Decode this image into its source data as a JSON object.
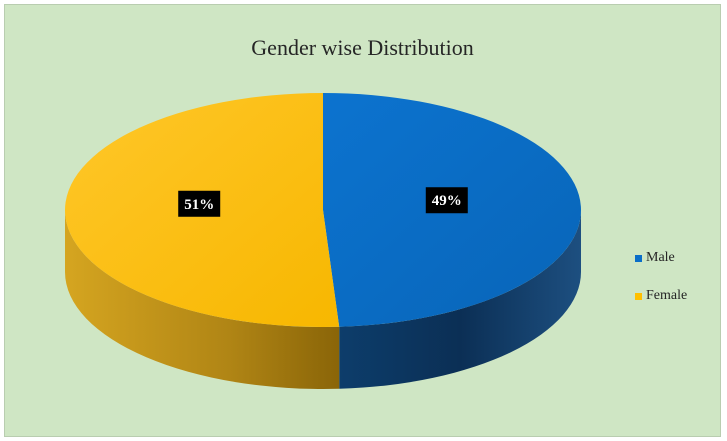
{
  "chart_data": {
    "type": "pie",
    "title": "Gender wise Distribution",
    "series": [
      {
        "name": "Male",
        "value": 49,
        "label": "49%",
        "color": "#0a6ec8",
        "side_color": "#0b3a66"
      },
      {
        "name": "Female",
        "value": 51,
        "label": "51%",
        "color": "#ffc000",
        "side_color": "#a87d10"
      }
    ],
    "legend_position": "right",
    "style": "3d"
  }
}
